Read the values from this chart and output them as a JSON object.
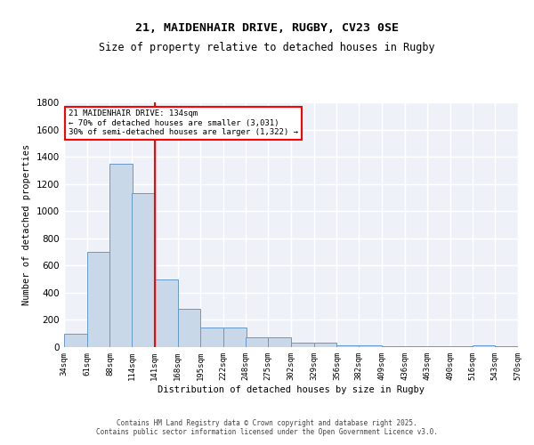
{
  "title": "21, MAIDENHAIR DRIVE, RUGBY, CV23 0SE",
  "subtitle": "Size of property relative to detached houses in Rugby",
  "xlabel": "Distribution of detached houses by size in Rugby",
  "ylabel": "Number of detached properties",
  "bar_values": [
    100,
    700,
    1350,
    1130,
    500,
    280,
    145,
    145,
    75,
    75,
    35,
    30,
    10,
    10,
    5,
    5,
    5,
    5,
    15,
    5
  ],
  "bin_edges": [
    34,
    61,
    88,
    114,
    141,
    168,
    195,
    222,
    248,
    275,
    302,
    329,
    356,
    382,
    409,
    436,
    463,
    490,
    516,
    543,
    570
  ],
  "tick_labels": [
    "34sqm",
    "61sqm",
    "88sqm",
    "114sqm",
    "141sqm",
    "168sqm",
    "195sqm",
    "222sqm",
    "248sqm",
    "275sqm",
    "302sqm",
    "329sqm",
    "356sqm",
    "382sqm",
    "409sqm",
    "436sqm",
    "463sqm",
    "490sqm",
    "516sqm",
    "543sqm",
    "570sqm"
  ],
  "bar_color": "#c8d8e8",
  "bar_edge_color": "#6699cc",
  "vline_x": 141,
  "vline_color": "red",
  "annotation_title": "21 MAIDENHAIR DRIVE: 134sqm",
  "annotation_line1": "← 70% of detached houses are smaller (3,031)",
  "annotation_line2": "30% of semi-detached houses are larger (1,322) →",
  "annotation_box_color": "white",
  "annotation_box_edge": "red",
  "ylim": [
    0,
    1800
  ],
  "yticks": [
    0,
    200,
    400,
    600,
    800,
    1000,
    1200,
    1400,
    1600,
    1800
  ],
  "bg_color": "#eef2f8",
  "grid_color": "white",
  "footer_line1": "Contains HM Land Registry data © Crown copyright and database right 2025.",
  "footer_line2": "Contains public sector information licensed under the Open Government Licence v3.0."
}
